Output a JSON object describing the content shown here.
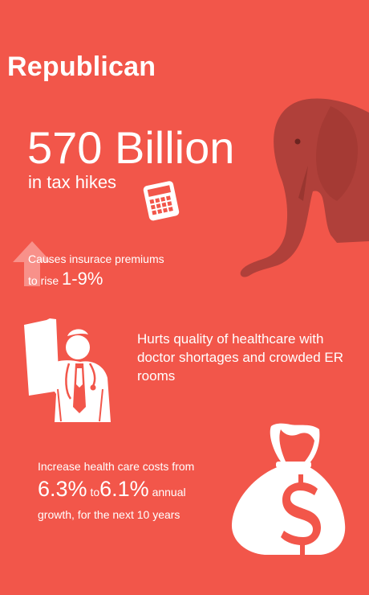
{
  "title": "Republican",
  "tax": {
    "amount": "570 Billion",
    "label": "in tax hikes"
  },
  "premiums": {
    "line1": "Causes insurace premiums",
    "prefix": "to rise",
    "range": "1-9%"
  },
  "quality": {
    "text": "Hurts quality of healthcare with doctor shortages and crowded ER rooms"
  },
  "costs": {
    "line1": "Increase health care costs from",
    "from": "6.3%",
    "to_word": "to",
    "to": "6.1%",
    "annual": "annual",
    "line3": "growth, for the next 10 years"
  },
  "icons": [
    "elephant-icon",
    "calculator-icon",
    "arrow-up-icon",
    "doctor-icon",
    "money-bag-icon"
  ],
  "colors": {
    "background": "#f2564a",
    "text": "#ffffff",
    "elephant": "#b4413a"
  }
}
